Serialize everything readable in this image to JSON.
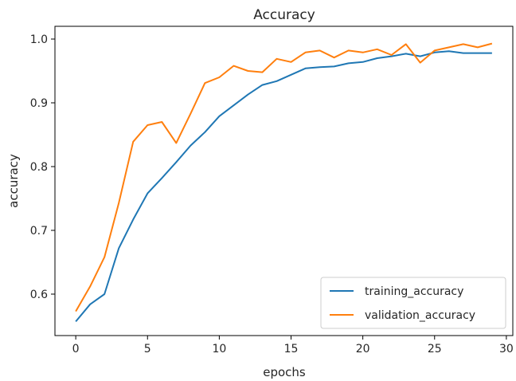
{
  "chart_data": {
    "type": "line",
    "title": "Accuracy",
    "xlabel": "epochs",
    "ylabel": "accuracy",
    "xlim": [
      -1.45,
      30.45
    ],
    "ylim": [
      0.535,
      1.02
    ],
    "xticks": [
      0,
      5,
      10,
      15,
      20,
      25,
      30
    ],
    "yticks": [
      0.6,
      0.7,
      0.8,
      0.9,
      1.0
    ],
    "ytick_labels": [
      "0.6",
      "0.7",
      "0.8",
      "0.9",
      "1.0"
    ],
    "grid": false,
    "legend_position": "lower-right",
    "x": [
      0,
      1,
      2,
      3,
      4,
      5,
      6,
      7,
      8,
      9,
      10,
      11,
      12,
      13,
      14,
      15,
      16,
      17,
      18,
      19,
      20,
      21,
      22,
      23,
      24,
      25,
      26,
      27,
      28,
      29
    ],
    "series": [
      {
        "name": "training_accuracy",
        "color": "#1f77b4",
        "values": [
          0.557,
          0.584,
          0.6,
          0.672,
          0.717,
          0.758,
          0.782,
          0.807,
          0.833,
          0.854,
          0.879,
          0.896,
          0.913,
          0.928,
          0.934,
          0.944,
          0.954,
          0.956,
          0.957,
          0.962,
          0.964,
          0.97,
          0.973,
          0.977,
          0.973,
          0.979,
          0.981,
          0.978,
          0.978,
          0.978
        ]
      },
      {
        "name": "validation_accuracy",
        "color": "#ff7f0e",
        "values": [
          0.573,
          0.612,
          0.658,
          0.743,
          0.839,
          0.865,
          0.87,
          0.837,
          0.883,
          0.931,
          0.94,
          0.958,
          0.95,
          0.948,
          0.969,
          0.964,
          0.979,
          0.982,
          0.971,
          0.982,
          0.979,
          0.984,
          0.975,
          0.992,
          0.963,
          0.982,
          0.987,
          0.992,
          0.987,
          0.993
        ]
      }
    ]
  }
}
